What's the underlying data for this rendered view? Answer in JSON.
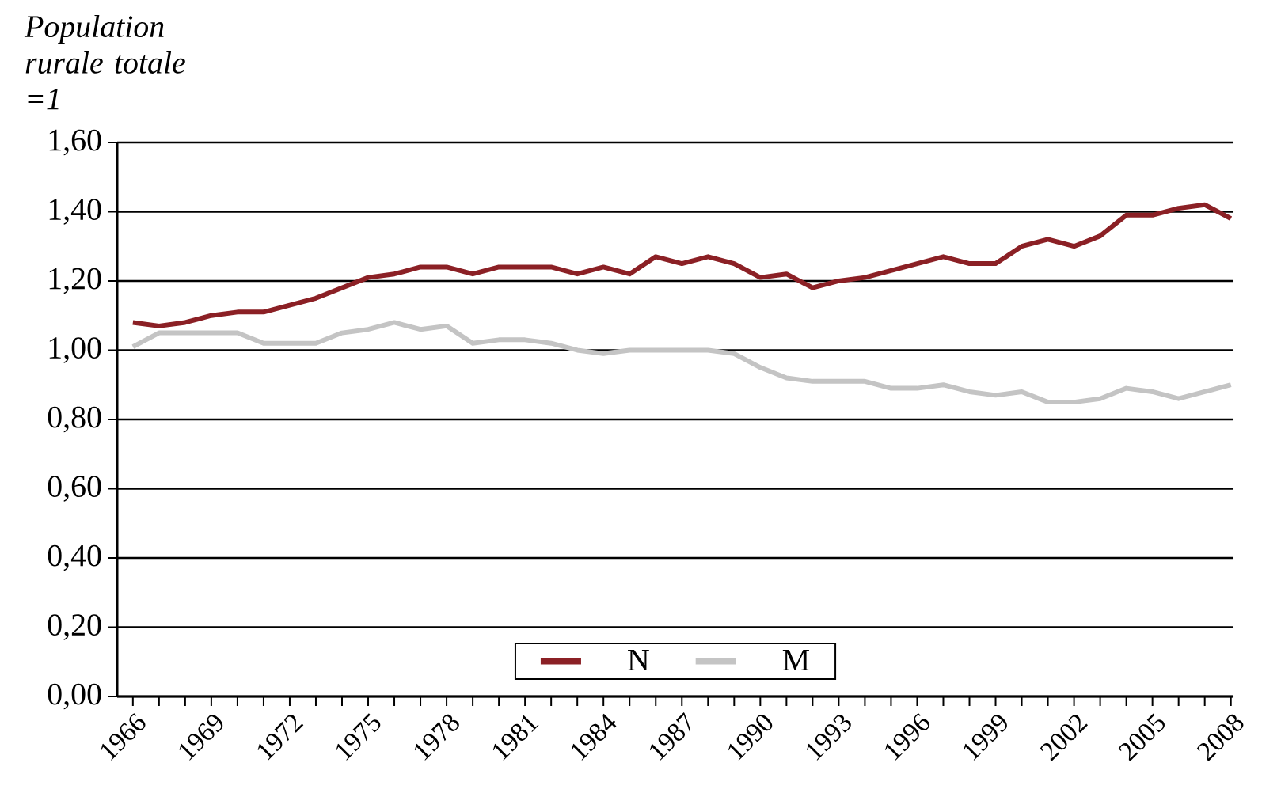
{
  "chart_data": {
    "type": "line",
    "ylabel": "Population rurale totale =1",
    "x": [
      1966,
      1967,
      1968,
      1969,
      1970,
      1971,
      1972,
      1973,
      1974,
      1975,
      1976,
      1977,
      1978,
      1979,
      1980,
      1981,
      1982,
      1983,
      1984,
      1985,
      1986,
      1987,
      1988,
      1989,
      1990,
      1991,
      1992,
      1993,
      1994,
      1995,
      1996,
      1997,
      1998,
      1999,
      2000,
      2001,
      2002,
      2003,
      2004,
      2005,
      2006,
      2007,
      2008
    ],
    "series": [
      {
        "name": "N",
        "color": "#8b2025",
        "values": [
          1.08,
          1.07,
          1.08,
          1.1,
          1.11,
          1.11,
          1.13,
          1.15,
          1.18,
          1.21,
          1.22,
          1.24,
          1.24,
          1.22,
          1.24,
          1.24,
          1.24,
          1.22,
          1.24,
          1.22,
          1.27,
          1.25,
          1.27,
          1.25,
          1.21,
          1.22,
          1.18,
          1.2,
          1.21,
          1.23,
          1.25,
          1.27,
          1.25,
          1.25,
          1.3,
          1.32,
          1.3,
          1.33,
          1.39,
          1.39,
          1.41,
          1.42,
          1.38
        ]
      },
      {
        "name": "M",
        "color": "#c4c4c4",
        "values": [
          1.01,
          1.05,
          1.05,
          1.05,
          1.05,
          1.02,
          1.02,
          1.02,
          1.05,
          1.06,
          1.08,
          1.06,
          1.07,
          1.02,
          1.03,
          1.03,
          1.02,
          1.0,
          0.99,
          1.0,
          1.0,
          1.0,
          1.0,
          0.99,
          0.95,
          0.92,
          0.91,
          0.91,
          0.91,
          0.89,
          0.89,
          0.9,
          0.88,
          0.87,
          0.88,
          0.85,
          0.85,
          0.86,
          0.89,
          0.88,
          0.86,
          0.88,
          0.9
        ]
      }
    ],
    "xlim": [
      1965.4,
      2008.1
    ],
    "xticks": [
      1966,
      1969,
      1972,
      1975,
      1978,
      1981,
      1984,
      1987,
      1990,
      1993,
      1996,
      1999,
      2002,
      2005,
      2008
    ],
    "ylim": [
      0,
      1.6
    ],
    "yticks": [
      {
        "value": 0,
        "label": "0,00"
      },
      {
        "value": 0.2,
        "label": "0,20"
      },
      {
        "value": 0.4,
        "label": "0,40"
      },
      {
        "value": 0.6,
        "label": "0,60"
      },
      {
        "value": 0.8,
        "label": "0,80"
      },
      {
        "value": 1.0,
        "label": "1,00"
      },
      {
        "value": 1.2,
        "label": "1,20"
      },
      {
        "value": 1.4,
        "label": "1,40"
      },
      {
        "value": 1.6,
        "label": "1,60"
      }
    ],
    "grid": "y",
    "legend": "bottom",
    "marker": "none",
    "line_style": "solid"
  }
}
